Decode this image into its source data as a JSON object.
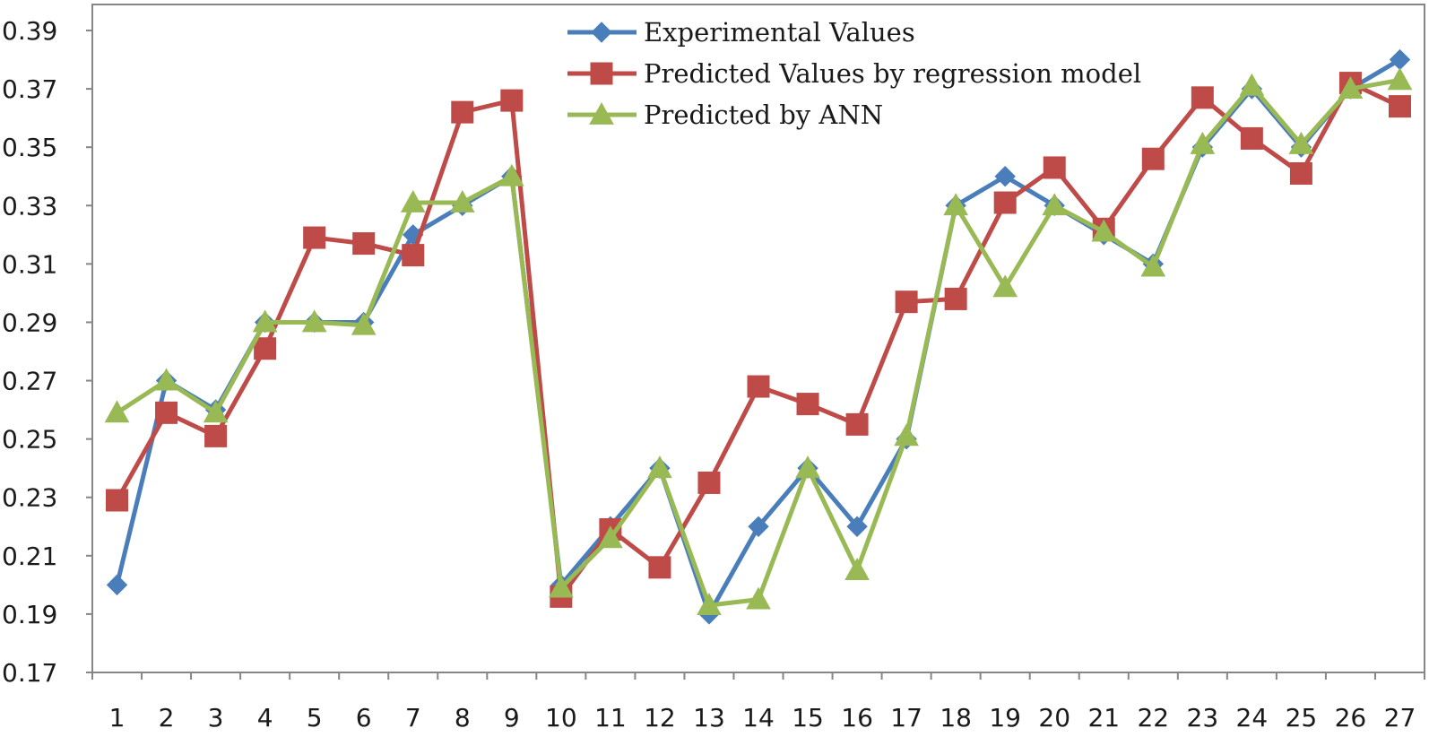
{
  "chart_data": {
    "type": "line",
    "categories": [
      "1",
      "2",
      "3",
      "4",
      "5",
      "6",
      "7",
      "8",
      "9",
      "10",
      "11",
      "12",
      "13",
      "14",
      "15",
      "16",
      "17",
      "18",
      "19",
      "20",
      "21",
      "22",
      "23",
      "24",
      "25",
      "26",
      "27"
    ],
    "ylim": [
      0.17,
      0.39
    ],
    "yticks": [
      "0.17",
      "0.19",
      "0.21",
      "0.23",
      "0.25",
      "0.27",
      "0.29",
      "0.31",
      "0.33",
      "0.35",
      "0.37",
      "0.39"
    ],
    "grid": false,
    "legend_position": "top",
    "series": [
      {
        "name": "Experimental Values",
        "color": "#4a7ebb",
        "marker": "diamond",
        "values": [
          0.2,
          0.27,
          0.26,
          0.29,
          0.29,
          0.29,
          0.32,
          0.33,
          0.34,
          0.2,
          0.22,
          0.24,
          0.19,
          0.22,
          0.24,
          0.22,
          0.25,
          0.33,
          0.34,
          0.33,
          0.32,
          0.31,
          0.35,
          0.37,
          0.35,
          0.37,
          0.38
        ]
      },
      {
        "name": "Predicted Values by regression model",
        "color": "#be4b48",
        "marker": "square",
        "values": [
          0.229,
          0.259,
          0.251,
          0.281,
          0.319,
          0.317,
          0.313,
          0.362,
          0.366,
          0.196,
          0.219,
          0.206,
          0.235,
          0.268,
          0.262,
          0.255,
          0.297,
          0.298,
          0.331,
          0.343,
          0.322,
          0.346,
          0.367,
          0.353,
          0.341,
          0.372,
          0.364
        ]
      },
      {
        "name": "Predicted by ANN",
        "color": "#98b954",
        "marker": "triangle",
        "values": [
          0.259,
          0.27,
          0.259,
          0.29,
          0.29,
          0.289,
          0.331,
          0.331,
          0.34,
          0.199,
          0.216,
          0.24,
          0.193,
          0.195,
          0.24,
          0.205,
          0.251,
          0.33,
          0.302,
          0.33,
          0.321,
          0.309,
          0.351,
          0.371,
          0.351,
          0.37,
          0.373
        ]
      }
    ]
  }
}
